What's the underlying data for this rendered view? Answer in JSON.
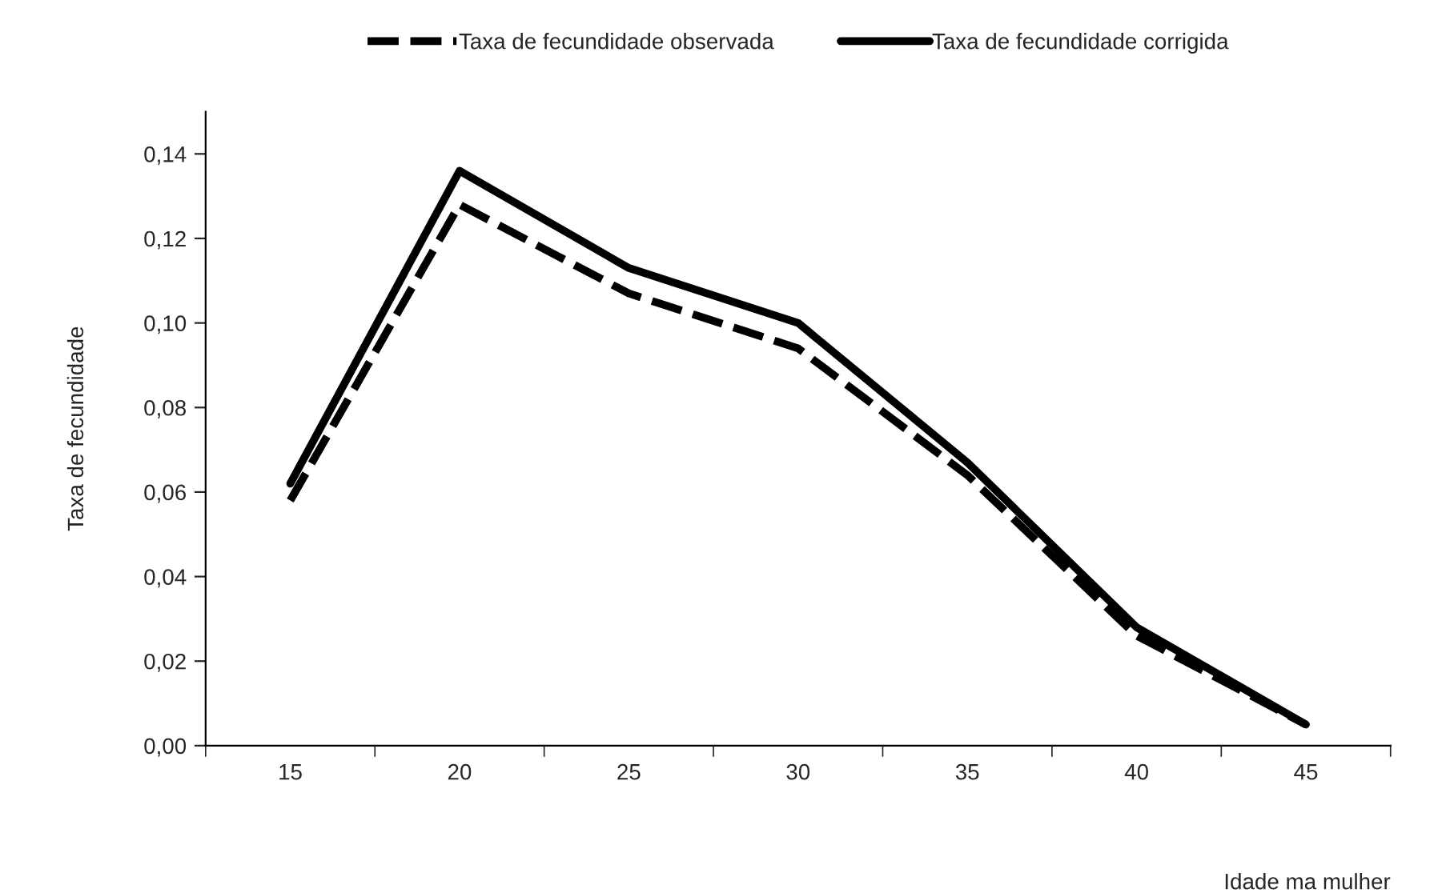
{
  "chart_data": {
    "type": "line",
    "xlabel": "Idade ma mulher",
    "ylabel": "Taxa de fecundidade",
    "categories": [
      "15",
      "20",
      "25",
      "30",
      "35",
      "40",
      "45"
    ],
    "series": [
      {
        "name": "Taxa de fecundidade observada",
        "color": "#000000",
        "line_style": "dashed",
        "values": [
          0.058,
          0.128,
          0.107,
          0.094,
          0.064,
          0.026,
          0.005
        ]
      },
      {
        "name": "Taxa de fecundidade corrigida",
        "color": "#000000",
        "line_style": "solid",
        "values": [
          0.062,
          0.136,
          0.113,
          0.1,
          0.067,
          0.028,
          0.005
        ]
      }
    ],
    "ylim": [
      0,
      0.15
    ],
    "yticks": [
      {
        "value": 0,
        "label": "0,00"
      },
      {
        "value": 0.02,
        "label": "0,02"
      },
      {
        "value": 0.04,
        "label": "0,04"
      },
      {
        "value": 0.06,
        "label": "0,06"
      },
      {
        "value": 0.08,
        "label": "0,08"
      },
      {
        "value": 0.1,
        "label": "0,10"
      },
      {
        "value": 0.12,
        "label": "0,12"
      },
      {
        "value": 0.14,
        "label": "0,14"
      }
    ],
    "grid": false,
    "legend": "top",
    "marker": "none"
  }
}
